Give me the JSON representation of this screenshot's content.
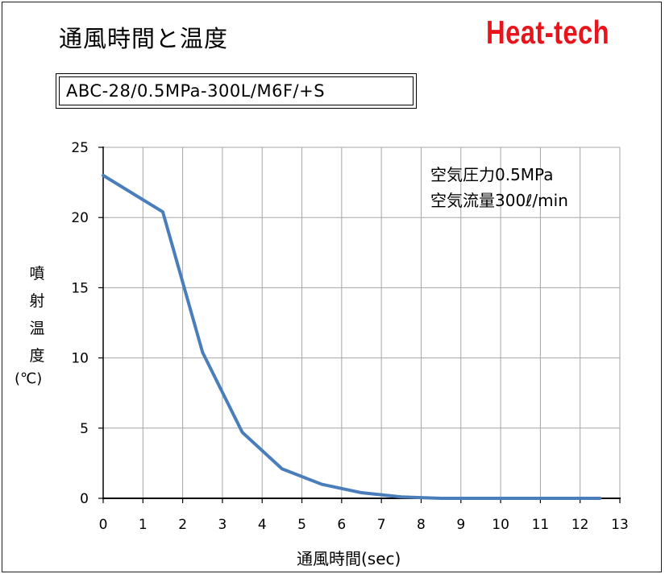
{
  "title": "通風時間と温度",
  "brand": "Heat-tech",
  "model": "ABC-28/0.5MPa-300L/M6F/+S",
  "annotations": [
    "空気圧力0.5MPa",
    "空気流量300ℓ/min"
  ],
  "ylabel_chars": [
    "噴",
    "射",
    "温",
    "度"
  ],
  "ylabel_unit": "(℃)",
  "colors": {
    "brand": "#e8141b",
    "line": "#4a7ebb",
    "grid": "#a6a6a6"
  },
  "chart_data": {
    "type": "line",
    "title": "通風時間と温度",
    "xlabel": "通風時間(sec)",
    "ylabel": "噴射温度(℃)",
    "xlim": [
      0,
      13
    ],
    "ylim": [
      0,
      25
    ],
    "xticks": [
      "0",
      "1",
      "2",
      "3",
      "4",
      "5",
      "6",
      "7",
      "8",
      "9",
      "10",
      "11",
      "12",
      "13"
    ],
    "yticks": [
      "0",
      "5",
      "10",
      "15",
      "20",
      "25"
    ],
    "grid": true,
    "series": [
      {
        "x": [
          0,
          1.5,
          2.5,
          3.5,
          4.5,
          5.5,
          6.5,
          7.5,
          8.5,
          9.5,
          10.5,
          11.5,
          12.5
        ],
        "y": [
          23,
          20.4,
          10.4,
          4.7,
          2.1,
          1.0,
          0.4,
          0.1,
          0.0,
          0.0,
          0.0,
          0.0,
          0.0
        ]
      }
    ]
  }
}
